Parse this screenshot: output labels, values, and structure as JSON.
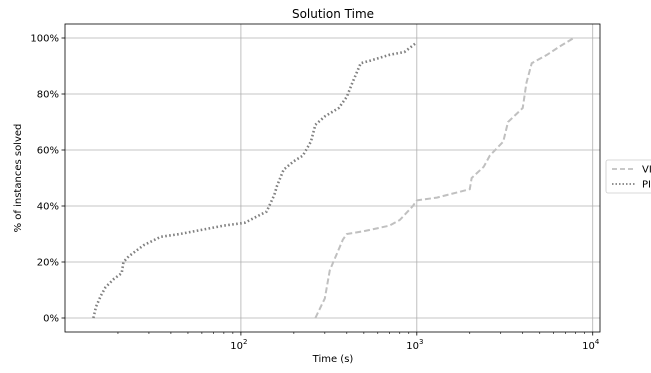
{
  "chart_data": {
    "type": "line",
    "title": "Solution Time",
    "xlabel": "Time (s)",
    "ylabel": "% of instances solved",
    "xscale": "log",
    "xlim": [
      10,
      11000
    ],
    "ylim": [
      -5,
      105
    ],
    "grid": true,
    "legend_position": "right",
    "xticks": [
      {
        "value": 100,
        "base": "10",
        "exp": "2"
      },
      {
        "value": 1000,
        "base": "10",
        "exp": "3"
      },
      {
        "value": 10000,
        "base": "10",
        "exp": "4"
      }
    ],
    "yticks": [
      {
        "value": 0,
        "label": "0%"
      },
      {
        "value": 20,
        "label": "20%"
      },
      {
        "value": 40,
        "label": "40%"
      },
      {
        "value": 60,
        "label": "60%"
      },
      {
        "value": 80,
        "label": "80%"
      },
      {
        "value": 100,
        "label": "100%"
      }
    ],
    "series": [
      {
        "name": "VI",
        "color": "#c0c0c0",
        "style": "dashed",
        "points": [
          [
            265,
            0
          ],
          [
            300,
            7
          ],
          [
            320,
            17
          ],
          [
            380,
            28
          ],
          [
            400,
            30
          ],
          [
            500,
            31
          ],
          [
            700,
            33
          ],
          [
            800,
            35
          ],
          [
            950,
            40
          ],
          [
            1000,
            42
          ],
          [
            1300,
            43
          ],
          [
            2000,
            46
          ],
          [
            2050,
            50
          ],
          [
            2400,
            54
          ],
          [
            2600,
            58
          ],
          [
            3100,
            63
          ],
          [
            3300,
            70
          ],
          [
            4000,
            75
          ],
          [
            4200,
            84
          ],
          [
            4500,
            91
          ],
          [
            5500,
            94
          ],
          [
            6500,
            97
          ],
          [
            7800,
            100
          ]
        ]
      },
      {
        "name": "PI",
        "color": "#808080",
        "style": "dotted",
        "points": [
          [
            14.5,
            0
          ],
          [
            15,
            4
          ],
          [
            16,
            8
          ],
          [
            17,
            11
          ],
          [
            19,
            14
          ],
          [
            21,
            16
          ],
          [
            21.5,
            20
          ],
          [
            23,
            22
          ],
          [
            28,
            26
          ],
          [
            35,
            29
          ],
          [
            45,
            30
          ],
          [
            80,
            33
          ],
          [
            105,
            34
          ],
          [
            130,
            37
          ],
          [
            140,
            38
          ],
          [
            155,
            44
          ],
          [
            160,
            47
          ],
          [
            175,
            53
          ],
          [
            200,
            56
          ],
          [
            225,
            58
          ],
          [
            250,
            63
          ],
          [
            265,
            69
          ],
          [
            300,
            72
          ],
          [
            360,
            75
          ],
          [
            400,
            79
          ],
          [
            430,
            84
          ],
          [
            480,
            91
          ],
          [
            550,
            92
          ],
          [
            700,
            94
          ],
          [
            850,
            95
          ],
          [
            980,
            98
          ]
        ]
      }
    ]
  }
}
